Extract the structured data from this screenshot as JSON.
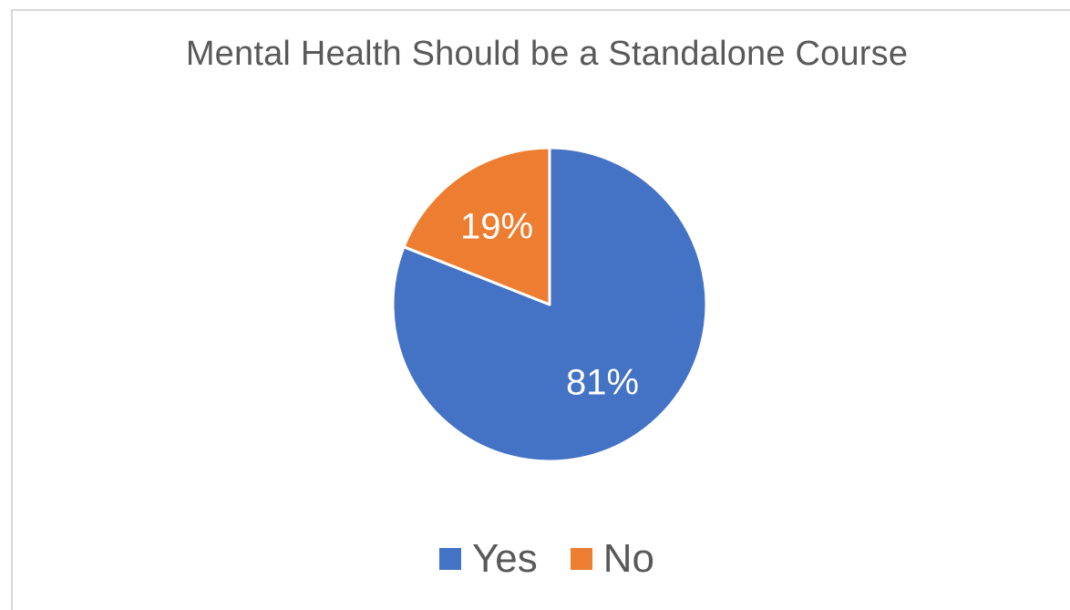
{
  "chart_data": {
    "type": "pie",
    "title": "Mental Health Should be a Standalone Course",
    "categories": [
      "Yes",
      "No"
    ],
    "values": [
      81,
      19
    ],
    "data_labels": [
      "81%",
      "19%"
    ],
    "colors": [
      "#4472C4",
      "#ED7D31"
    ],
    "legend_position": "bottom"
  }
}
